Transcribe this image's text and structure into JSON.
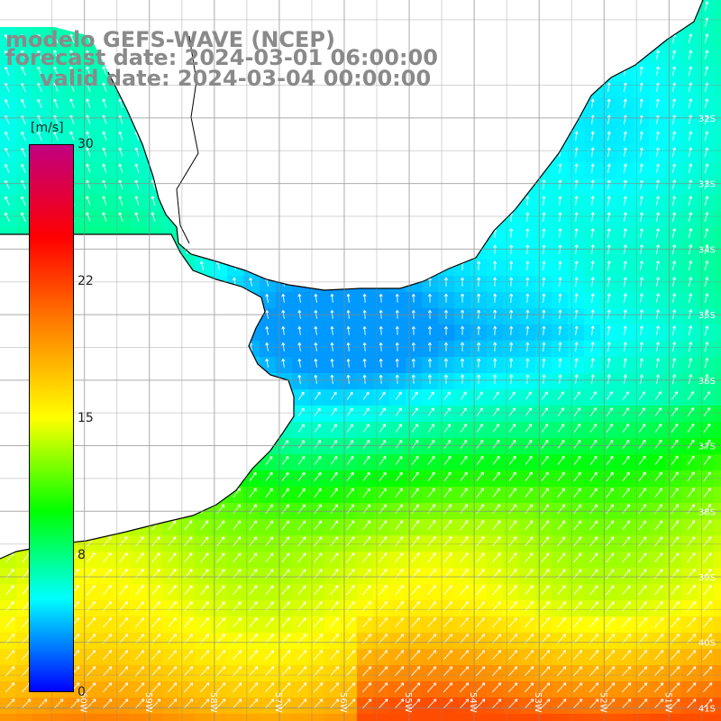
{
  "titles": {
    "line1": "modelo GEFS-WAVE (NCEP)",
    "line2": "forecast date: 2024-03-01 06:00:00",
    "line3": "valid date: 2024-03-04 00:00:00"
  },
  "colorbar": {
    "unit": "[m/s]",
    "ticks": [
      "30",
      "22",
      "15",
      "8",
      "0"
    ],
    "tick_values": [
      30,
      22,
      15,
      8,
      0
    ],
    "colors": [
      "#0000ff",
      "#00ffff",
      "#00ff00",
      "#ffff00",
      "#ff8000",
      "#ff0000",
      "#c00080"
    ]
  },
  "map": {
    "lat_labels": [
      "32S",
      "33S",
      "34S",
      "35S",
      "36S",
      "37S",
      "38S",
      "39S",
      "40S",
      "41S"
    ],
    "lon_labels": [
      "60W",
      "59W",
      "58W",
      "57W",
      "56W",
      "55W",
      "54W",
      "53W",
      "52W",
      "51W"
    ],
    "lat_range": [
      -41.2,
      -30.2
    ],
    "lon_range": [
      -61.3,
      -50.2
    ],
    "land_color": "#ffffff",
    "grid_color": "#888888",
    "coast_color": "#000000",
    "arrow_color": "#ffffff"
  }
}
